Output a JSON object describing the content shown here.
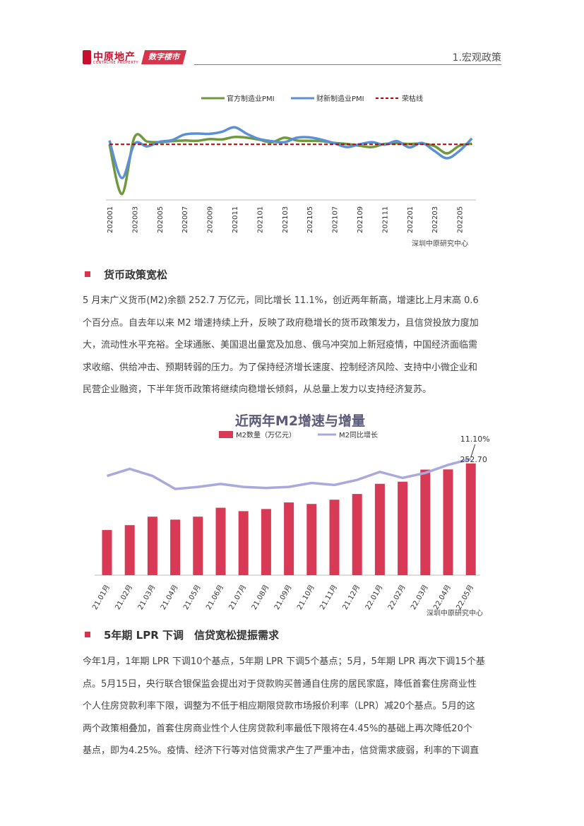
{
  "header": {
    "logo_cn": "中原地产",
    "logo_en": "CENTALINE PROPERTY",
    "badge": "数字楼市",
    "section": "1.宏观政策"
  },
  "chart1": {
    "legend": {
      "official_pmi": "官方制造业PMI",
      "caixin_pmi": "财新制造业PMI",
      "boom_bust": "荣枯线"
    },
    "colors": {
      "official": "#6e9a3c",
      "caixin": "#5b8fd6",
      "boom_bust": "#c00000"
    },
    "x_ticks": [
      "202001",
      "202003",
      "202005",
      "202007",
      "202009",
      "202011",
      "202101",
      "202103",
      "202105",
      "202107",
      "202109",
      "202111",
      "202201",
      "202203",
      "202205"
    ],
    "source": "深圳中原研究中心"
  },
  "chart_data": [
    {
      "type": "line",
      "x": [
        "202001",
        "202002",
        "202003",
        "202004",
        "202005",
        "202006",
        "202007",
        "202008",
        "202009",
        "202010",
        "202011",
        "202012",
        "202101",
        "202102",
        "202103",
        "202104",
        "202105",
        "202106",
        "202107",
        "202108",
        "202109",
        "202110",
        "202111",
        "202112",
        "202201",
        "202202",
        "202203",
        "202204",
        "202205",
        "202206"
      ],
      "series": [
        {
          "name": "官方制造业PMI",
          "values": [
            50.0,
            35.7,
            52.0,
            50.8,
            50.6,
            50.9,
            51.1,
            51.0,
            51.5,
            51.4,
            52.1,
            51.9,
            51.3,
            50.6,
            51.9,
            51.1,
            51.0,
            50.9,
            50.4,
            50.1,
            49.6,
            49.2,
            50.1,
            50.3,
            50.1,
            50.2,
            49.5,
            47.4,
            49.6,
            50.2
          ]
        },
        {
          "name": "财新制造业PMI",
          "values": [
            51.1,
            40.3,
            50.1,
            49.4,
            50.7,
            51.2,
            52.8,
            53.1,
            53.0,
            53.6,
            54.9,
            53.0,
            51.5,
            50.9,
            50.6,
            51.9,
            52.0,
            51.3,
            50.3,
            49.2,
            50.0,
            50.6,
            49.9,
            50.9,
            49.1,
            50.4,
            48.1,
            46.0,
            48.1,
            51.7
          ]
        },
        {
          "name": "荣枯线",
          "values": [
            50,
            50,
            50,
            50,
            50,
            50,
            50,
            50,
            50,
            50,
            50,
            50,
            50,
            50,
            50,
            50,
            50,
            50,
            50,
            50,
            50,
            50,
            50,
            50,
            50,
            50,
            50,
            50,
            50,
            50
          ]
        }
      ],
      "ylim": [
        34,
        60
      ]
    },
    {
      "type": "bar",
      "title": "近两年M2增速与增量",
      "categories": [
        "21.01月",
        "21.02月",
        "21.03月",
        "21.04月",
        "21.05月",
        "21.06月",
        "21.07月",
        "21.08月",
        "21.09月",
        "21.10月",
        "21.11月",
        "21.12月",
        "22.01月",
        "22.02月",
        "22.03月",
        "22.04月",
        "22.05月"
      ],
      "series": [
        {
          "name": "M2数量（万亿元）",
          "type": "bar",
          "values": [
            221.3,
            223.6,
            227.6,
            226.2,
            227.6,
            231.8,
            230.2,
            231.2,
            234.3,
            233.6,
            235.6,
            238.3,
            243.1,
            244.1,
            249.8,
            249.9,
            252.7
          ]
        },
        {
          "name": "M2同比增长",
          "type": "line",
          "unit": "%",
          "values": [
            9.4,
            10.1,
            9.4,
            8.1,
            8.3,
            8.6,
            8.3,
            8.2,
            8.3,
            8.7,
            8.5,
            9.0,
            9.8,
            9.2,
            9.7,
            10.5,
            11.1
          ]
        }
      ],
      "labels": {
        "last_bar": "252.70",
        "last_line": "11.10%"
      },
      "colors": {
        "bar": "#d83a56",
        "line": "#a9a9de"
      },
      "source": "深圳中原研究中心"
    }
  ],
  "section1": {
    "title": "货币政策宽松",
    "lines": [
      "5 月末广义货币(M2)余额 252.7 万亿元，同比增长 11.1%，创近两年新高，增速比上月末高 0.6",
      "个百分点。自去年以来 M2 增速持续上升，反映了政府稳增长的货币政策发力，且信贷投放力度加",
      "大，流动性水平充裕。全球通胀、美国退出量宽及加息、俄乌冲突加上新冠疫情，中国经济面临需",
      "求收缩、供给冲击、预期转弱的压力。为了保持经济增长速度、控制经济风险、支持中小微企业和",
      "民营企业融资，下半年货币政策将继续向稳增长倾斜，从总量上发力以支持经济复苏。"
    ]
  },
  "section2": {
    "title": "5年期 LPR 下调　信贷宽松提振需求",
    "lines": [
      "今年1月，1年期 LPR 下调10个基点，5年期 LPR 下调5个基点；5月，5年期 LPR 再次下调15个基",
      "点。5月15日，央行联合银保监会提出对于贷款购买普通自住房的居民家庭，降低首套住房商业性",
      "个人住房贷款利率下限，调整为不低于相应期限贷款市场报价利率（LPR）减20个基点。5月的这",
      "两个政策相叠加，首套住房商业性个人住房贷款利率最低下限将在4.45%的基础上再次降低20个",
      "基点，即为4.25%。疫情、经济下行等对信贷需求产生了严重冲击，信贷需求疲弱，利率的下调直"
    ]
  }
}
